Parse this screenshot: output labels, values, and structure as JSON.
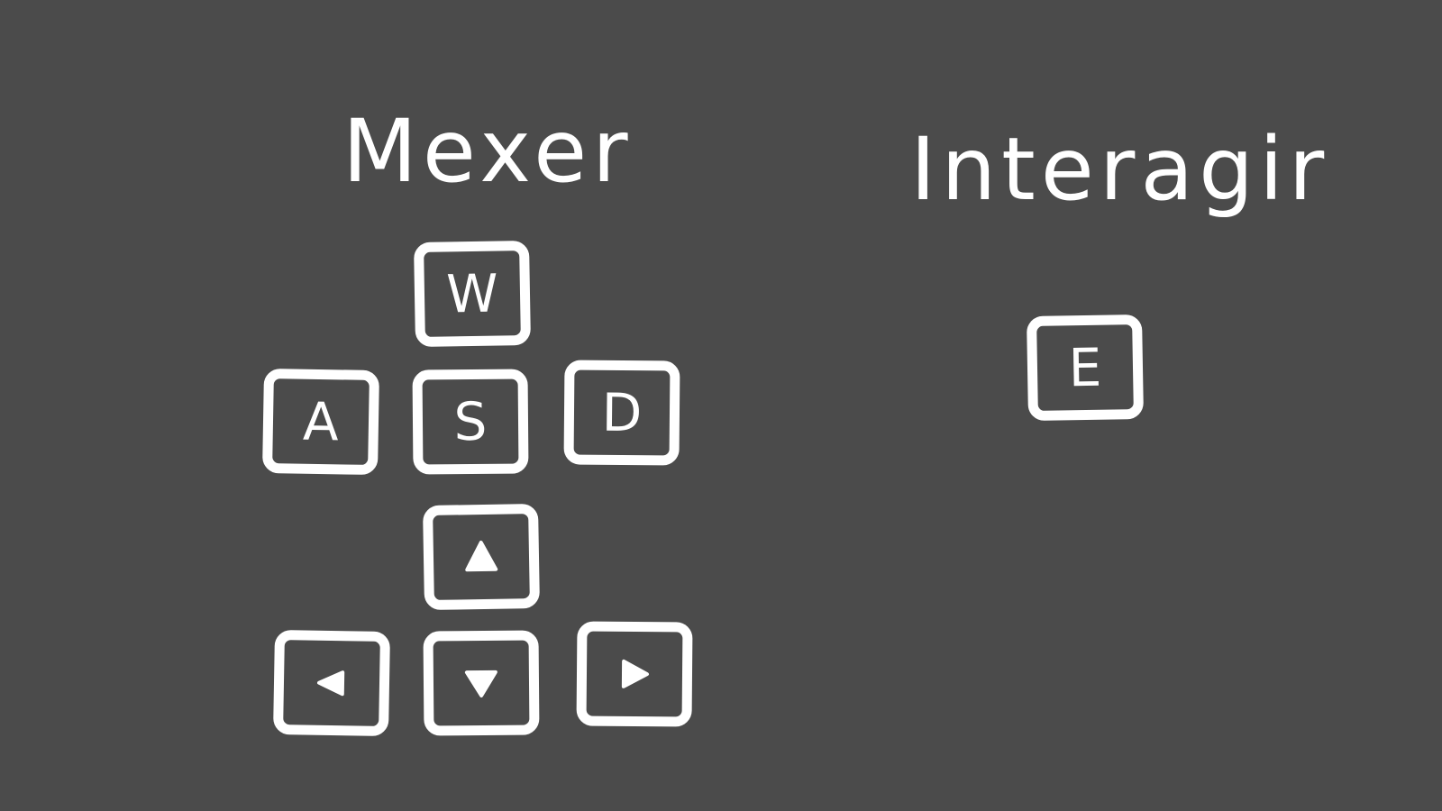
{
  "screen": {
    "background_color": "#4b4b4b",
    "foreground_color": "#ffffff"
  },
  "move": {
    "title": "Mexer",
    "keys": {
      "w": "W",
      "a": "A",
      "s": "S",
      "d": "D"
    },
    "arrows": {
      "up": "arrow-up-icon",
      "left": "arrow-left-icon",
      "down": "arrow-down-icon",
      "right": "arrow-right-icon"
    }
  },
  "interact": {
    "title": "Interagir",
    "key": "E"
  }
}
